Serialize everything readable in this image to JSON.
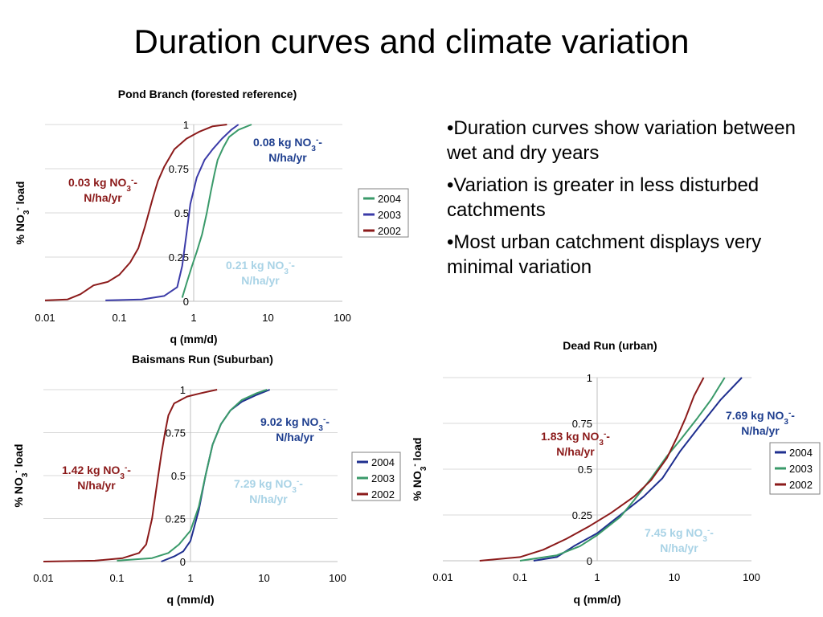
{
  "slide": {
    "title": "Duration curves and climate variation",
    "bullets": [
      "•Duration curves show variation between wet and dry years",
      "•Variation is greater in less disturbed catchments",
      "•Most urban catchment displays very minimal variation"
    ]
  },
  "chart_data": [
    {
      "type": "line",
      "title": "Pond Branch (forested reference)",
      "xlabel": "q (mm/d)",
      "ylabel": "% NO3- load",
      "xscale": "log",
      "xlim": [
        0.01,
        100
      ],
      "ylim": [
        0,
        1
      ],
      "xticks": [
        "0.01",
        "0.1",
        "1",
        "10",
        "100"
      ],
      "yticks": [
        "0",
        "0.25",
        "0.5",
        "0.75",
        "1"
      ],
      "grid": true,
      "legend_position": "right",
      "legend": [
        "2004",
        "2003",
        "2002"
      ],
      "series": [
        {
          "name": "2004",
          "color": "#3a9a6a",
          "points": [
            [
              0.7,
              0.02
            ],
            [
              0.8,
              0.1
            ],
            [
              0.95,
              0.2
            ],
            [
              1.1,
              0.28
            ],
            [
              1.3,
              0.38
            ],
            [
              1.5,
              0.5
            ],
            [
              1.7,
              0.62
            ],
            [
              1.9,
              0.72
            ],
            [
              2.1,
              0.8
            ],
            [
              2.5,
              0.87
            ],
            [
              3,
              0.93
            ],
            [
              4,
              0.97
            ],
            [
              6,
              1.0
            ]
          ]
        },
        {
          "name": "2003",
          "color": "#3b3ba8",
          "points": [
            [
              0.065,
              0.005
            ],
            [
              0.2,
              0.01
            ],
            [
              0.4,
              0.03
            ],
            [
              0.6,
              0.08
            ],
            [
              0.7,
              0.2
            ],
            [
              0.8,
              0.38
            ],
            [
              0.9,
              0.55
            ],
            [
              1.1,
              0.7
            ],
            [
              1.4,
              0.8
            ],
            [
              1.8,
              0.86
            ],
            [
              2.4,
              0.92
            ],
            [
              3.2,
              0.97
            ],
            [
              4,
              1.0
            ]
          ]
        },
        {
          "name": "2002",
          "color": "#8b1a1a",
          "points": [
            [
              0.01,
              0.005
            ],
            [
              0.02,
              0.01
            ],
            [
              0.03,
              0.04
            ],
            [
              0.045,
              0.09
            ],
            [
              0.07,
              0.11
            ],
            [
              0.1,
              0.15
            ],
            [
              0.14,
              0.22
            ],
            [
              0.18,
              0.3
            ],
            [
              0.22,
              0.42
            ],
            [
              0.28,
              0.58
            ],
            [
              0.33,
              0.68
            ],
            [
              0.4,
              0.76
            ],
            [
              0.55,
              0.86
            ],
            [
              0.8,
              0.92
            ],
            [
              1.2,
              0.96
            ],
            [
              1.8,
              0.99
            ],
            [
              2.8,
              1.0
            ]
          ]
        }
      ],
      "annotations": [
        {
          "text": "0.08 kg NO3--N/ha/yr",
          "color": "#1f3f8f"
        },
        {
          "text": "0.03 kg NO3--N/ha/yr",
          "color": "#8b1a1a"
        },
        {
          "text": "0.21 kg NO3--N/ha/yr",
          "color": "#a9d3e6"
        }
      ]
    },
    {
      "type": "line",
      "title": "Baismans Run (Suburban)",
      "xlabel": "q (mm/d)",
      "ylabel": "% NO3- load",
      "xscale": "log",
      "xlim": [
        0.01,
        100
      ],
      "ylim": [
        0,
        1
      ],
      "xticks": [
        "0.01",
        "0.1",
        "1",
        "10",
        "100"
      ],
      "yticks": [
        "0",
        "0.25",
        "0.5",
        "0.75",
        "1"
      ],
      "grid": true,
      "legend_position": "right",
      "legend": [
        "2004",
        "2003",
        "2002"
      ],
      "series": [
        {
          "name": "2004",
          "color": "#1f2f8f",
          "points": [
            [
              0.4,
              0.0
            ],
            [
              0.6,
              0.03
            ],
            [
              0.8,
              0.06
            ],
            [
              1.0,
              0.12
            ],
            [
              1.3,
              0.3
            ],
            [
              1.6,
              0.5
            ],
            [
              2,
              0.68
            ],
            [
              2.6,
              0.8
            ],
            [
              3.5,
              0.88
            ],
            [
              5,
              0.93
            ],
            [
              8,
              0.97
            ],
            [
              12,
              1.0
            ]
          ]
        },
        {
          "name": "2003",
          "color": "#3a9a6a",
          "points": [
            [
              0.1,
              0.005
            ],
            [
              0.3,
              0.02
            ],
            [
              0.5,
              0.05
            ],
            [
              0.7,
              0.1
            ],
            [
              1.0,
              0.18
            ],
            [
              1.3,
              0.32
            ],
            [
              1.6,
              0.5
            ],
            [
              2,
              0.68
            ],
            [
              2.6,
              0.8
            ],
            [
              3.5,
              0.88
            ],
            [
              5,
              0.94
            ],
            [
              8,
              0.98
            ],
            [
              11,
              1.0
            ]
          ]
        },
        {
          "name": "2002",
          "color": "#8b1a1a",
          "points": [
            [
              0.01,
              0.0
            ],
            [
              0.05,
              0.005
            ],
            [
              0.12,
              0.02
            ],
            [
              0.2,
              0.05
            ],
            [
              0.25,
              0.1
            ],
            [
              0.3,
              0.25
            ],
            [
              0.35,
              0.45
            ],
            [
              0.4,
              0.62
            ],
            [
              0.45,
              0.75
            ],
            [
              0.5,
              0.85
            ],
            [
              0.6,
              0.92
            ],
            [
              0.9,
              0.96
            ],
            [
              1.4,
              0.98
            ],
            [
              2.3,
              1.0
            ]
          ]
        }
      ],
      "annotations": [
        {
          "text": "9.02 kg NO3--N/ha/yr",
          "color": "#1f3f8f"
        },
        {
          "text": "1.42 kg NO3--N/ha/yr",
          "color": "#8b1a1a"
        },
        {
          "text": "7.29 kg NO3--N/ha/yr",
          "color": "#a9d3e6"
        }
      ]
    },
    {
      "type": "line",
      "title": "Dead Run (urban)",
      "xlabel": "q (mm/d)",
      "ylabel": "% NO3- load",
      "xscale": "log",
      "xlim": [
        0.01,
        100
      ],
      "ylim": [
        0,
        1
      ],
      "xticks": [
        "0.01",
        "0.1",
        "1",
        "10",
        "100"
      ],
      "yticks": [
        "0",
        "0.25",
        "0.5",
        "0.75",
        "1"
      ],
      "grid": true,
      "legend_position": "right",
      "legend": [
        "2004",
        "2003",
        "2002"
      ],
      "series": [
        {
          "name": "2004",
          "color": "#1f2f8f",
          "points": [
            [
              0.15,
              0.0
            ],
            [
              0.3,
              0.02
            ],
            [
              0.5,
              0.08
            ],
            [
              1,
              0.15
            ],
            [
              2,
              0.25
            ],
            [
              4,
              0.35
            ],
            [
              7,
              0.45
            ],
            [
              12,
              0.6
            ],
            [
              20,
              0.72
            ],
            [
              40,
              0.88
            ],
            [
              75,
              1.0
            ]
          ]
        },
        {
          "name": "2003",
          "color": "#3a9a6a",
          "points": [
            [
              0.1,
              0.0
            ],
            [
              0.3,
              0.03
            ],
            [
              0.6,
              0.08
            ],
            [
              1,
              0.14
            ],
            [
              2,
              0.24
            ],
            [
              3,
              0.33
            ],
            [
              5,
              0.45
            ],
            [
              8,
              0.57
            ],
            [
              12,
              0.66
            ],
            [
              20,
              0.78
            ],
            [
              30,
              0.88
            ],
            [
              45,
              1.0
            ]
          ]
        },
        {
          "name": "2002",
          "color": "#8b1a1a",
          "points": [
            [
              0.03,
              0.0
            ],
            [
              0.1,
              0.02
            ],
            [
              0.2,
              0.06
            ],
            [
              0.4,
              0.12
            ],
            [
              0.8,
              0.19
            ],
            [
              1.5,
              0.26
            ],
            [
              3,
              0.35
            ],
            [
              5,
              0.44
            ],
            [
              8,
              0.56
            ],
            [
              11,
              0.68
            ],
            [
              14,
              0.78
            ],
            [
              18,
              0.9
            ],
            [
              24,
              1.0
            ]
          ]
        }
      ],
      "annotations": [
        {
          "text": "7.69 kg NO3--N/ha/yr",
          "color": "#1f3f8f"
        },
        {
          "text": "1.83 kg NO3--N/ha/yr",
          "color": "#8b1a1a"
        },
        {
          "text": "7.45 kg NO3--N/ha/yr",
          "color": "#a9d3e6"
        }
      ]
    }
  ]
}
